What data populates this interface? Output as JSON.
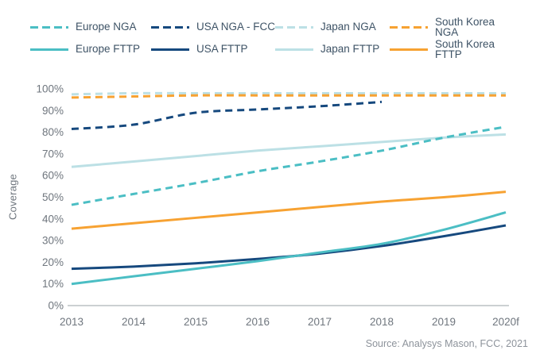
{
  "colors": {
    "teal": "#4BBEC4",
    "navy": "#16497E",
    "pale_blue": "#BCE0E5",
    "orange": "#F7A232",
    "legend_text": "#3E5366",
    "axis_text": "#6F767E",
    "source_text": "#8D939B",
    "axis_line": "#9AA0A6"
  },
  "legend": {
    "items": [
      {
        "label": "Europe NGA",
        "color": "teal",
        "style": "dashed"
      },
      {
        "label": "USA NGA - FCC",
        "color": "navy",
        "style": "dashed"
      },
      {
        "label": "Japan NGA",
        "color": "pale_blue",
        "style": "dashed"
      },
      {
        "label": "South Korea NGA",
        "color": "orange",
        "style": "dashed"
      },
      {
        "label": "Europe FTTP",
        "color": "teal",
        "style": "solid"
      },
      {
        "label": "USA FTTP",
        "color": "navy",
        "style": "solid"
      },
      {
        "label": "Japan FTTP",
        "color": "pale_blue",
        "style": "solid"
      },
      {
        "label": "South Korea FTTP",
        "color": "orange",
        "style": "solid"
      }
    ]
  },
  "chart_data": {
    "type": "line",
    "title": "",
    "xlabel": "",
    "ylabel": "Coverage",
    "ylim": [
      0,
      100
    ],
    "grid": false,
    "legend_position": "top",
    "yticks": [
      "0%",
      "10%",
      "20%",
      "30%",
      "40%",
      "50%",
      "60%",
      "70%",
      "80%",
      "90%",
      "100%"
    ],
    "categories": [
      "2013",
      "2014",
      "2015",
      "2016",
      "2017",
      "2018",
      "2019",
      "2020f"
    ],
    "series": [
      {
        "name": "Japan NGA",
        "color": "pale_blue",
        "style": "dashed",
        "values": [
          97.5,
          98,
          98,
          98,
          98,
          98,
          98,
          98
        ]
      },
      {
        "name": "South Korea NGA",
        "color": "orange",
        "style": "dashed",
        "values": [
          96,
          96.5,
          97,
          97,
          97,
          97,
          97,
          97
        ]
      },
      {
        "name": "USA NGA - FCC",
        "color": "navy",
        "style": "dashed",
        "values": [
          81.5,
          83.5,
          89,
          90.5,
          92,
          94,
          null,
          null
        ]
      },
      {
        "name": "Japan FTTP",
        "color": "pale_blue",
        "style": "solid",
        "values": [
          64,
          66.5,
          69,
          71.5,
          73.5,
          75.5,
          77.5,
          79
        ]
      },
      {
        "name": "Europe NGA",
        "color": "teal",
        "style": "dashed",
        "values": [
          46.5,
          51.5,
          56.5,
          62,
          66.5,
          71.5,
          77.5,
          82.5
        ]
      },
      {
        "name": "South Korea FTTP",
        "color": "orange",
        "style": "solid",
        "values": [
          35.5,
          38,
          40.5,
          43,
          45.5,
          48,
          50,
          52.5
        ]
      },
      {
        "name": "USA FTTP",
        "color": "navy",
        "style": "solid",
        "values": [
          17,
          18,
          19.5,
          21.5,
          24,
          27.5,
          32,
          37
        ]
      },
      {
        "name": "Europe FTTP",
        "color": "teal",
        "style": "solid",
        "values": [
          10,
          13.5,
          17,
          20.5,
          24.5,
          28.5,
          35,
          43
        ]
      }
    ]
  },
  "source_note": "Source: Analysys Mason, FCC, 2021"
}
